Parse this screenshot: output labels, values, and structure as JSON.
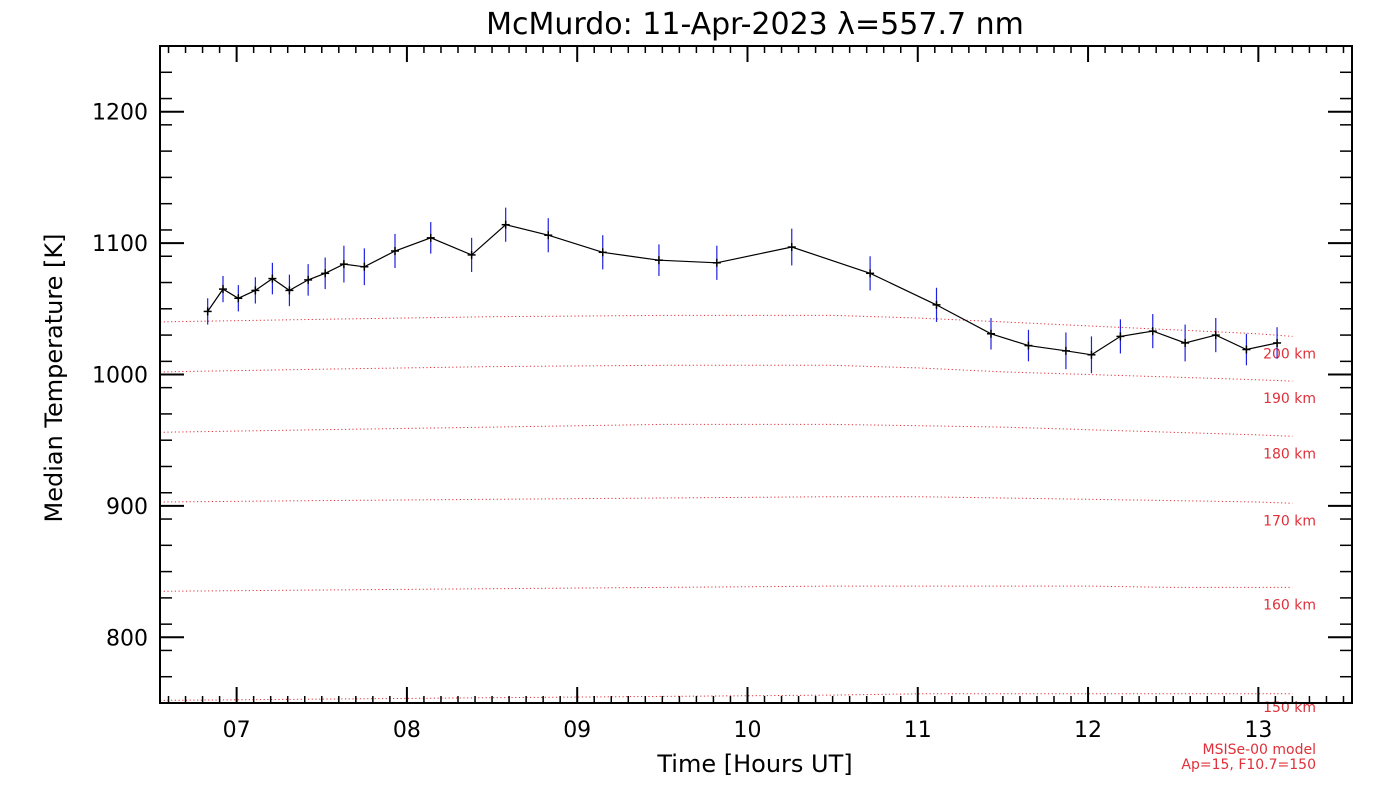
{
  "chart_data": {
    "type": "line",
    "title": "McMurdo: 11-Apr-2023 λ=557.7 nm",
    "xlabel": "Time [Hours UT]",
    "ylabel": "Median Temperature [K]",
    "xlim": [
      6.55,
      13.55
    ],
    "ylim": [
      750,
      1250
    ],
    "x_ticks": [
      7,
      8,
      9,
      10,
      11,
      12,
      13
    ],
    "x_tick_labels": [
      "07",
      "08",
      "09",
      "10",
      "11",
      "12",
      "13"
    ],
    "y_ticks": [
      800,
      900,
      1000,
      1100,
      1200
    ],
    "y_tick_labels": [
      "800",
      "900",
      "1000",
      "1100",
      "1200"
    ],
    "grid": false,
    "series": [
      {
        "color": "#000000",
        "errorbar_color": "#2020e0",
        "points": [
          {
            "x": 6.83,
            "y": 1048,
            "err": 10
          },
          {
            "x": 6.92,
            "y": 1065,
            "err": 10
          },
          {
            "x": 7.01,
            "y": 1058,
            "err": 10
          },
          {
            "x": 7.11,
            "y": 1064,
            "err": 10
          },
          {
            "x": 7.21,
            "y": 1073,
            "err": 12
          },
          {
            "x": 7.31,
            "y": 1064,
            "err": 12
          },
          {
            "x": 7.42,
            "y": 1072,
            "err": 12
          },
          {
            "x": 7.52,
            "y": 1077,
            "err": 12
          },
          {
            "x": 7.63,
            "y": 1084,
            "err": 14
          },
          {
            "x": 7.75,
            "y": 1082,
            "err": 14
          },
          {
            "x": 7.93,
            "y": 1094,
            "err": 13
          },
          {
            "x": 8.14,
            "y": 1104,
            "err": 12
          },
          {
            "x": 8.38,
            "y": 1091,
            "err": 13
          },
          {
            "x": 8.58,
            "y": 1114,
            "err": 13
          },
          {
            "x": 8.83,
            "y": 1106,
            "err": 13
          },
          {
            "x": 9.15,
            "y": 1093,
            "err": 13
          },
          {
            "x": 9.48,
            "y": 1087,
            "err": 12
          },
          {
            "x": 9.82,
            "y": 1085,
            "err": 13
          },
          {
            "x": 10.26,
            "y": 1097,
            "err": 14
          },
          {
            "x": 10.72,
            "y": 1077,
            "err": 13
          },
          {
            "x": 11.11,
            "y": 1053,
            "err": 13
          },
          {
            "x": 11.43,
            "y": 1031,
            "err": 12
          },
          {
            "x": 11.65,
            "y": 1022,
            "err": 12
          },
          {
            "x": 11.87,
            "y": 1018,
            "err": 14
          },
          {
            "x": 12.02,
            "y": 1015,
            "err": 14
          },
          {
            "x": 12.19,
            "y": 1029,
            "err": 13
          },
          {
            "x": 12.38,
            "y": 1033,
            "err": 13
          },
          {
            "x": 12.57,
            "y": 1024,
            "err": 14
          },
          {
            "x": 12.75,
            "y": 1030,
            "err": 13
          },
          {
            "x": 12.93,
            "y": 1019,
            "err": 12
          },
          {
            "x": 13.11,
            "y": 1024,
            "err": 12
          }
        ]
      }
    ],
    "model_curves": [
      {
        "label": "200 km",
        "color": "#e0303a",
        "x": [
          6.55,
          7.5,
          8.5,
          9.5,
          10.5,
          11.0,
          11.5,
          12.0,
          12.5,
          13.0,
          13.2
        ],
        "y": [
          1040,
          1042,
          1044,
          1045,
          1045,
          1043,
          1040,
          1037,
          1034,
          1031,
          1029
        ]
      },
      {
        "label": "190 km",
        "color": "#e0303a",
        "x": [
          6.55,
          7.5,
          8.5,
          9.5,
          10.5,
          11.0,
          11.5,
          12.0,
          12.5,
          13.0,
          13.2
        ],
        "y": [
          1002,
          1004,
          1006,
          1007,
          1007,
          1005,
          1002,
          1000,
          998,
          996,
          995
        ]
      },
      {
        "label": "180 km",
        "color": "#e0303a",
        "x": [
          6.55,
          7.5,
          8.5,
          9.5,
          10.5,
          11.0,
          11.5,
          12.0,
          12.5,
          13.0,
          13.2
        ],
        "y": [
          956,
          958,
          960,
          962,
          962,
          961,
          960,
          958,
          956,
          954,
          953
        ]
      },
      {
        "label": "170 km",
        "color": "#e0303a",
        "x": [
          6.55,
          7.5,
          8.5,
          9.5,
          10.5,
          11.0,
          11.5,
          12.0,
          12.5,
          13.0,
          13.2
        ],
        "y": [
          903,
          904,
          905,
          906,
          907,
          907,
          906,
          905,
          904,
          903,
          902
        ]
      },
      {
        "label": "160 km",
        "color": "#e0303a",
        "x": [
          6.55,
          7.5,
          8.5,
          9.5,
          10.5,
          11.0,
          11.5,
          12.0,
          12.5,
          13.0,
          13.2
        ],
        "y": [
          835,
          836,
          837,
          838,
          839,
          839,
          839,
          839,
          838,
          838,
          838
        ]
      },
      {
        "label": "150 km",
        "color": "#e0303a",
        "x": [
          6.55,
          7.5,
          8.5,
          9.5,
          10.5,
          11.0,
          11.5,
          12.0,
          12.5,
          13.0,
          13.2
        ],
        "y": [
          752,
          753,
          754,
          755,
          756,
          757,
          757,
          757,
          757,
          757,
          757
        ]
      }
    ],
    "annotations": [
      "MSISe-00 model",
      "Ap=15, F10.7=150"
    ]
  }
}
